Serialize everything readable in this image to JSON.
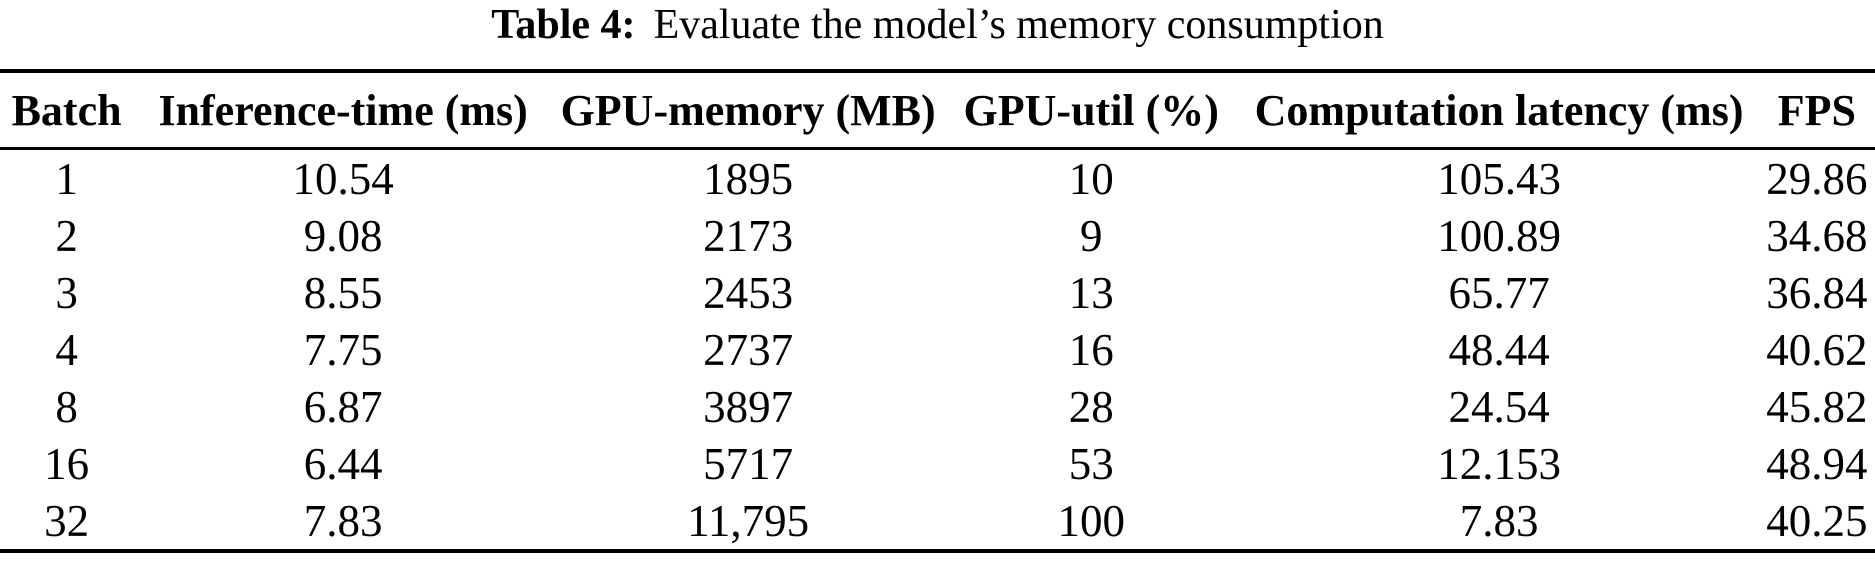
{
  "colors": {
    "background": "#ffffff",
    "text": "#000000",
    "rule": "#000000"
  },
  "caption": {
    "label": "Table 4:",
    "text": "Evaluate the model’s memory consumption"
  },
  "table": {
    "columns": [
      {
        "label": "Batch"
      },
      {
        "label": "Inference-time (ms)"
      },
      {
        "label": "GPU-memory (MB)"
      },
      {
        "label": "GPU-util (%)"
      },
      {
        "label": "Computation latency (ms)"
      },
      {
        "label": "FPS"
      }
    ],
    "rows": [
      [
        "1",
        "10.54",
        "1895",
        "10",
        "105.43",
        "29.86"
      ],
      [
        "2",
        "9.08",
        "2173",
        "9",
        "100.89",
        "34.68"
      ],
      [
        "3",
        "8.55",
        "2453",
        "13",
        "65.77",
        "36.84"
      ],
      [
        "4",
        "7.75",
        "2737",
        "16",
        "48.44",
        "40.62"
      ],
      [
        "8",
        "6.87",
        "3897",
        "28",
        "24.54",
        "45.82"
      ],
      [
        "16",
        "6.44",
        "5717",
        "53",
        "12.153",
        "48.94"
      ],
      [
        "32",
        "7.83",
        "11,795",
        "100",
        "7.83",
        "40.25"
      ]
    ]
  },
  "chart_data": {
    "type": "table",
    "title": "Table 4: Evaluate the model’s memory consumption",
    "columns": [
      "Batch",
      "Inference-time (ms)",
      "GPU-memory (MB)",
      "GPU-util (%)",
      "Computation latency (ms)",
      "FPS"
    ],
    "rows": [
      [
        1,
        10.54,
        1895,
        10,
        105.43,
        29.86
      ],
      [
        2,
        9.08,
        2173,
        9,
        100.89,
        34.68
      ],
      [
        3,
        8.55,
        2453,
        13,
        65.77,
        36.84
      ],
      [
        4,
        7.75,
        2737,
        16,
        48.44,
        40.62
      ],
      [
        8,
        6.87,
        3897,
        28,
        24.54,
        45.82
      ],
      [
        16,
        6.44,
        5717,
        53,
        12.153,
        48.94
      ],
      [
        32,
        7.83,
        11795,
        100,
        7.83,
        40.25
      ]
    ]
  }
}
